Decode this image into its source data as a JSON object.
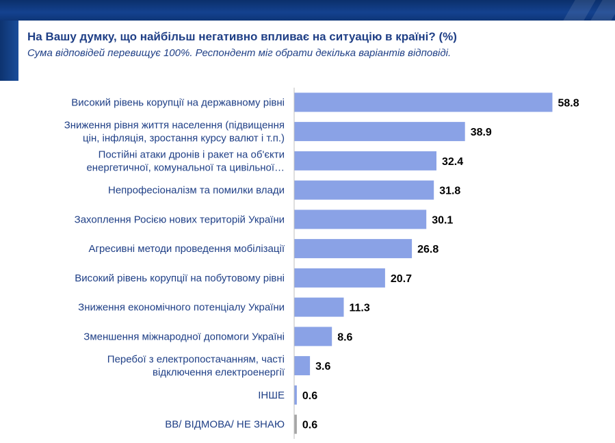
{
  "title": "На Вашу думку, що найбільш негативно впливає на ситуацію в країні? (%)",
  "subtitle": "Сума відповідей перевищує 100%. Респондент міг обрати декілька варіантів відповіді.",
  "colors": {
    "bar": "#8aa2e6",
    "bar_last": "#a6a6a6",
    "axis": "#bfbfbf",
    "text": "#1f3f86"
  },
  "chart_data": {
    "type": "bar",
    "orientation": "horizontal",
    "title": "На Вашу думку, що найбільш негативно впливає на ситуацію в країні? (%)",
    "subtitle": "Сума відповідей перевищує 100%. Респондент міг обрати декілька варіантів відповіді.",
    "categories": [
      [
        "Високий рівень корупції на державному рівні"
      ],
      [
        "Зниження рівня життя населення (підвищення",
        "цін, інфляція, зростання курсу валют і т.п.)"
      ],
      [
        "Постійні атаки дронів і ракет на об'єкти",
        "енергетичної, комунальної та цивільної…"
      ],
      [
        "Непрофесіоналізм та помилки влади"
      ],
      [
        "Захоплення Росією нових територій України"
      ],
      [
        "Агресивні методи проведення мобілізації"
      ],
      [
        "Високий рівень корупції на побутовому рівні"
      ],
      [
        "Зниження економічного потенціалу України"
      ],
      [
        "Зменшення міжнародної допомоги Україні"
      ],
      [
        "Перебої з електропостачанням, часті",
        "відключення електроенергії"
      ],
      [
        "ІНШЕ"
      ],
      [
        "ВВ/ ВІДМОВА/ НЕ ЗНАЮ"
      ]
    ],
    "values": [
      58.8,
      38.9,
      32.4,
      31.8,
      30.1,
      26.8,
      20.7,
      11.3,
      8.6,
      3.6,
      0.6,
      0.6
    ],
    "value_labels": [
      "58.8",
      "38.9",
      "32.4",
      "31.8",
      "30.1",
      "26.8",
      "20.7",
      "11.3",
      "8.6",
      "3.6",
      "0.6",
      "0.6"
    ],
    "xlim": [
      0,
      60
    ],
    "grid": false,
    "legend": "none"
  }
}
